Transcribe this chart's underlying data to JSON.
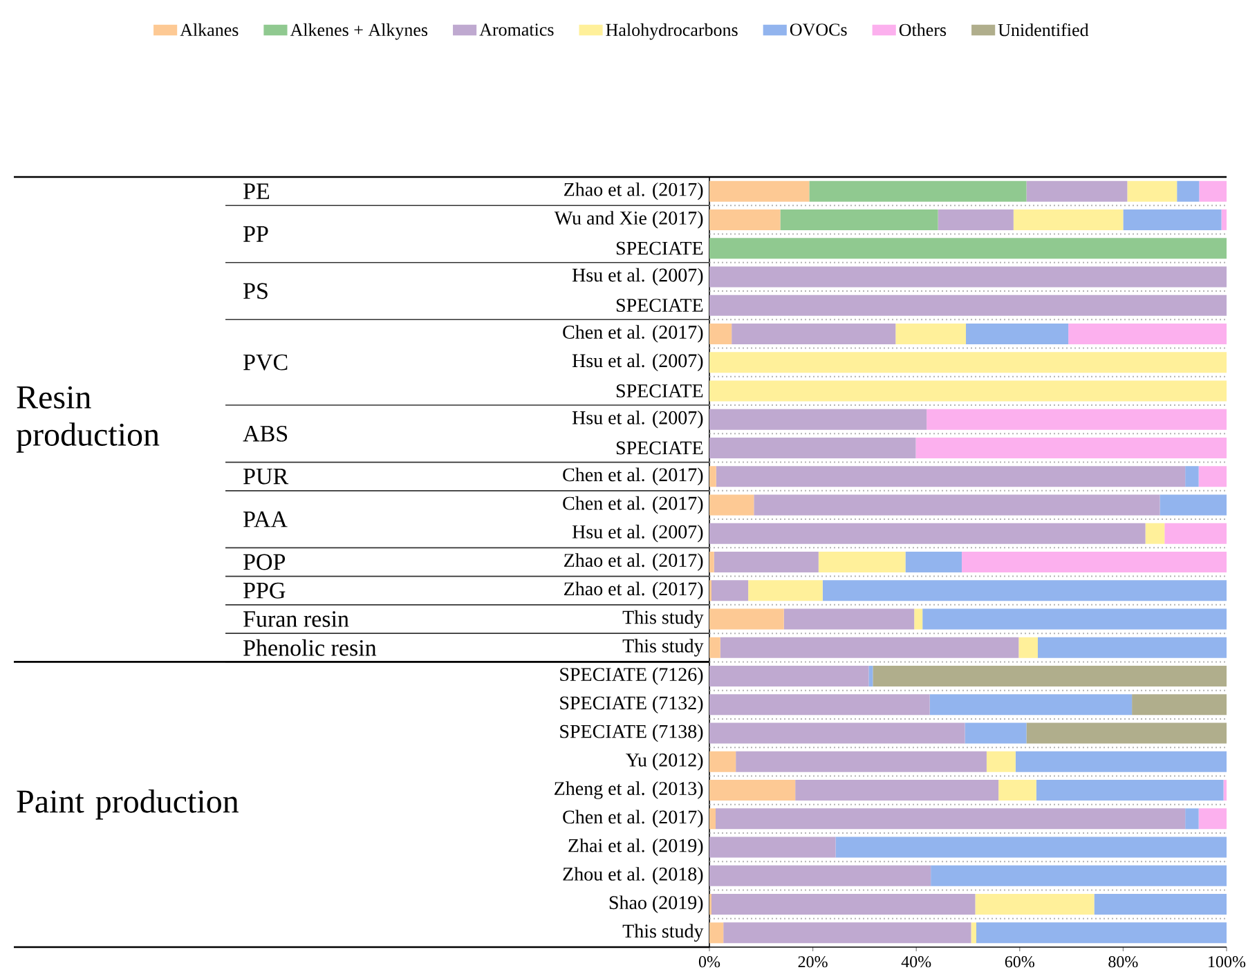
{
  "chart_data": {
    "type": "bar",
    "orientation": "horizontal",
    "stacked": true,
    "legend": "top",
    "categories": [
      "Zhao et al. (2017)",
      "Wu and Xie (2017)",
      "SPECIATE",
      "Hsu et al. (2007)",
      "SPECIATE",
      "Chen et al. (2017)",
      "Hsu et al. (2007)",
      "SPECIATE",
      "Hsu et al. (2007)",
      "SPECIATE",
      "Chen et al. (2017)",
      "Chen et al. (2017)",
      "Hsu et al. (2007)",
      "Zhao et al. (2017)",
      "Zhao et al. (2017)",
      "This study",
      "This study",
      "SPECIATE (7126)",
      "SPECIATE (7132)",
      "SPECIATE (7138)",
      "Yu (2012)",
      "Zheng et al. (2013)",
      "Chen et al. (2017)",
      "Zhai et al. (2019)",
      "Zhou et al. (2018)",
      "Shao (2019)",
      "This study"
    ],
    "series": [
      {
        "name": "Alkanes",
        "color": "#fdc994",
        "values": [
          19.3,
          13.7,
          null,
          null,
          null,
          4.3,
          null,
          null,
          null,
          null,
          1.3,
          8.6,
          null,
          0.9,
          0.4,
          14.4,
          2.1,
          null,
          null,
          null,
          5.1,
          16.6,
          1.2,
          null,
          null,
          0.4,
          2.7
        ]
      },
      {
        "name": "Alkenes + Alkynes",
        "color": "#90c990",
        "values": [
          42.0,
          30.5,
          100,
          null,
          null,
          null,
          null,
          null,
          null,
          null,
          null,
          null,
          null,
          null,
          null,
          null,
          null,
          null,
          null,
          null,
          null,
          null,
          null,
          null,
          null,
          null,
          null
        ]
      },
      {
        "name": "Aromatics",
        "color": "#bfa9d0",
        "values": [
          19.5,
          14.6,
          null,
          100,
          100,
          31.7,
          null,
          null,
          42.0,
          39.9,
          90.7,
          78.5,
          84.3,
          20.2,
          7.1,
          25.2,
          57.7,
          30.8,
          42.6,
          49.4,
          48.5,
          39.3,
          90.8,
          24.4,
          42.8,
          51.0,
          47.9
        ]
      },
      {
        "name": "Halohydrocarbons",
        "color": "#fff09a",
        "values": [
          9.6,
          21.2,
          null,
          null,
          null,
          13.6,
          100,
          100,
          null,
          null,
          null,
          null,
          3.7,
          16.8,
          14.4,
          1.6,
          3.7,
          null,
          null,
          null,
          5.6,
          7.3,
          null,
          null,
          null,
          23.0,
          1.0
        ]
      },
      {
        "name": "OVOCs",
        "color": "#92b4ee",
        "values": [
          4.3,
          19.0,
          null,
          null,
          null,
          19.8,
          null,
          null,
          null,
          null,
          2.6,
          12.9,
          null,
          10.9,
          78.1,
          58.8,
          36.5,
          0.8,
          39.1,
          11.9,
          40.8,
          36.2,
          2.6,
          75.6,
          57.2,
          25.6,
          48.4
        ]
      },
      {
        "name": "Others",
        "color": "#fcb0ee",
        "values": [
          5.3,
          1.0,
          null,
          null,
          null,
          30.6,
          null,
          null,
          58.0,
          60.1,
          5.4,
          null,
          12.0,
          51.2,
          null,
          null,
          null,
          null,
          null,
          null,
          null,
          0.6,
          5.4,
          null,
          null,
          null,
          null
        ]
      },
      {
        "name": "Unidentified",
        "color": "#b0ae8c",
        "values": [
          null,
          null,
          null,
          null,
          null,
          null,
          null,
          null,
          null,
          null,
          null,
          null,
          null,
          null,
          null,
          null,
          null,
          68.4,
          18.3,
          38.7,
          null,
          null,
          null,
          null,
          null,
          null,
          null
        ]
      }
    ],
    "xlim": [
      0,
      100
    ],
    "xticks": [
      {
        "value": 0,
        "label": "0%"
      },
      {
        "value": 20,
        "label": "20%"
      },
      {
        "value": 40,
        "label": "40%"
      },
      {
        "value": 60,
        "label": "60%"
      },
      {
        "value": 80,
        "label": "80%"
      },
      {
        "value": 100,
        "label": "100%"
      }
    ],
    "annotations": [
      "PE",
      "PP",
      "PS",
      "PVC",
      "ABS",
      "PUR",
      "PAA",
      "POP",
      "PPG",
      "Furan resin",
      "Phenolic resin",
      "Resin production",
      "Paint production"
    ]
  }
}
